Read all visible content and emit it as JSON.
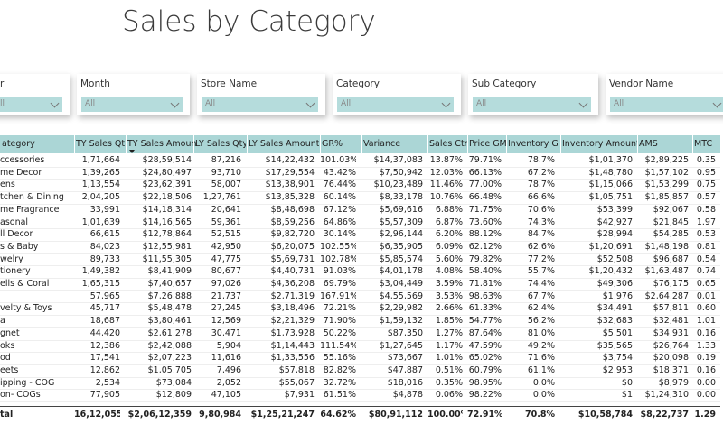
{
  "header": {
    "title": "Sales by Category"
  },
  "slicers": [
    {
      "label": "r",
      "value": "ll"
    },
    {
      "label": "Month",
      "value": "All"
    },
    {
      "label": "Store Name",
      "value": "All"
    },
    {
      "label": "Category",
      "value": "All"
    },
    {
      "label": "Sub Category",
      "value": "All"
    },
    {
      "label": "Vendor Name",
      "value": "All"
    }
  ],
  "table": {
    "columns": [
      "ategory",
      "TY Sales Qty",
      "TY Sales Amount",
      "LY Sales Qty",
      "LY Sales Amount",
      "GR%",
      "Variance",
      "Sales Ctrl",
      "Price GM",
      "Inventory GM",
      "Inventory Amount",
      "AMS",
      "MTC"
    ],
    "rows": [
      [
        "ccessories",
        "1,71,664",
        "$28,59,514",
        "87,216",
        "$14,22,432",
        "101.03%",
        "$14,37,083",
        "13.87%",
        "79.71%",
        "78.7%",
        "$1,01,370",
        "$2,89,225",
        "0.35"
      ],
      [
        "me Decor",
        "1,39,265",
        "$24,80,497",
        "93,710",
        "$17,29,554",
        "43.42%",
        "$7,50,942",
        "12.03%",
        "66.13%",
        "67.2%",
        "$1,48,780",
        "$1,57,102",
        "0.95"
      ],
      [
        "ens",
        "1,13,554",
        "$23,62,391",
        "58,007",
        "$13,38,901",
        "76.44%",
        "$10,23,489",
        "11.46%",
        "77.00%",
        "78.7%",
        "$1,15,066",
        "$1,53,299",
        "0.75"
      ],
      [
        "tchen & Dining",
        "2,04,205",
        "$22,18,506",
        "1,27,761",
        "$13,85,328",
        "60.14%",
        "$8,33,178",
        "10.76%",
        "66.48%",
        "66.6%",
        "$1,05,751",
        "$1,85,857",
        "0.57"
      ],
      [
        "me Fragrance",
        "33,991",
        "$14,18,314",
        "20,641",
        "$8,48,698",
        "67.12%",
        "$5,69,616",
        "6.88%",
        "71.75%",
        "70.6%",
        "$53,399",
        "$92,067",
        "0.58"
      ],
      [
        "asonal",
        "1,01,639",
        "$14,16,565",
        "59,361",
        "$8,59,256",
        "64.86%",
        "$5,57,309",
        "6.87%",
        "73.60%",
        "74.3%",
        "$42,927",
        "$21,845",
        "1.97"
      ],
      [
        "ll Decor",
        "66,615",
        "$12,78,864",
        "52,515",
        "$9,82,720",
        "30.14%",
        "$2,96,144",
        "6.20%",
        "88.12%",
        "84.7%",
        "$28,994",
        "$54,285",
        "0.53"
      ],
      [
        "s & Baby",
        "84,023",
        "$12,55,981",
        "42,950",
        "$6,20,075",
        "102.55%",
        "$6,35,905",
        "6.09%",
        "62.12%",
        "62.6%",
        "$1,20,691",
        "$1,48,198",
        "0.81"
      ],
      [
        "welry",
        "89,733",
        "$11,55,305",
        "47,775",
        "$5,69,731",
        "102.78%",
        "$5,85,574",
        "5.60%",
        "79.82%",
        "77.2%",
        "$52,508",
        "$96,687",
        "0.54"
      ],
      [
        "tionery",
        "1,49,382",
        "$8,41,909",
        "80,677",
        "$4,40,731",
        "91.03%",
        "$4,01,178",
        "4.08%",
        "58.40%",
        "55.7%",
        "$1,20,432",
        "$1,63,487",
        "0.74"
      ],
      [
        "ells & Coral",
        "1,65,315",
        "$7,40,657",
        "97,026",
        "$4,36,208",
        "69.79%",
        "$3,04,449",
        "3.59%",
        "71.81%",
        "74.4%",
        "$49,306",
        "$76,175",
        "0.65"
      ],
      [
        null,
        "57,965",
        "$7,26,888",
        "21,737",
        "$2,71,319",
        "167.91%",
        "$4,55,569",
        "3.53%",
        "98.63%",
        "67.7%",
        "$1,976",
        "$2,64,287",
        "0.01"
      ],
      [
        "velty & Toys",
        "45,717",
        "$5,48,478",
        "27,245",
        "$3,18,496",
        "72.21%",
        "$2,29,982",
        "2.66%",
        "61.33%",
        "62.4%",
        "$34,491",
        "$57,811",
        "0.60"
      ],
      [
        "a",
        "18,687",
        "$3,80,461",
        "12,569",
        "$2,21,329",
        "71.90%",
        "$1,59,132",
        "1.85%",
        "54.77%",
        "56.2%",
        "$32,683",
        "$32,481",
        "1.01"
      ],
      [
        "gnet",
        "44,420",
        "$2,61,278",
        "30,471",
        "$1,73,928",
        "50.22%",
        "$87,350",
        "1.27%",
        "87.64%",
        "81.0%",
        "$5,501",
        "$34,931",
        "0.16"
      ],
      [
        "oks",
        "12,386",
        "$2,42,088",
        "5,904",
        "$1,14,443",
        "111.54%",
        "$1,27,645",
        "1.17%",
        "47.59%",
        "49.2%",
        "$35,565",
        "$26,764",
        "1.33"
      ],
      [
        "od",
        "17,541",
        "$2,07,223",
        "11,616",
        "$1,33,556",
        "55.16%",
        "$73,667",
        "1.01%",
        "65.02%",
        "71.6%",
        "$3,754",
        "$20,098",
        "0.19"
      ],
      [
        "eets",
        "12,862",
        "$1,05,705",
        "7,496",
        "$57,818",
        "82.82%",
        "$47,887",
        "0.51%",
        "60.79%",
        "61.1%",
        "$2,953",
        "$18,371",
        "0.16"
      ],
      [
        "ipping - COG",
        "2,534",
        "$73,084",
        "2,052",
        "$55,067",
        "32.72%",
        "$18,016",
        "0.35%",
        "98.95%",
        "0.0%",
        "$0",
        "$8,979",
        "0.00"
      ],
      [
        "on- COGs",
        "77,905",
        "$12,809",
        "47,105",
        "$7,931",
        "61.51%",
        "$4,878",
        "0.06%",
        "98.22%",
        "0.0%",
        "$1",
        "$1,24,310",
        "0.00"
      ]
    ],
    "total": [
      "tal",
      "16,12,055",
      "$2,06,12,359",
      "9,80,984",
      "$1,25,21,247",
      "64.62%",
      "$80,91,112",
      "100.00%",
      "72.91%",
      "70.8%",
      "$10,58,784",
      "$8,22,737",
      "1.29"
    ]
  }
}
